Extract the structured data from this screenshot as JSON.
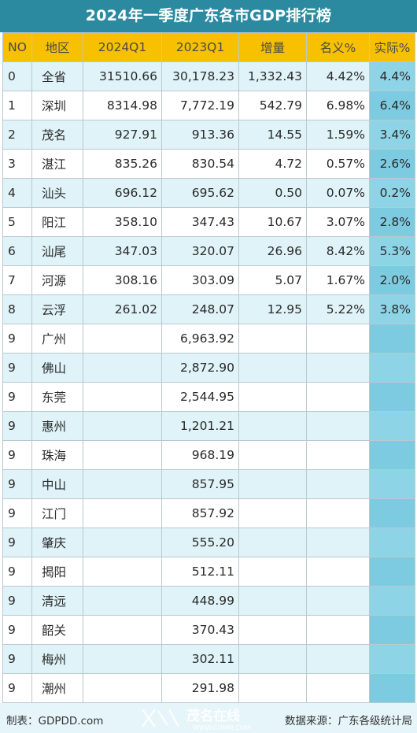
{
  "title": "2024年一季度广东各市GDP排行榜",
  "headers": [
    "NO",
    "地区",
    "2024Q1",
    "2023Q1",
    "增量",
    "名义%",
    "实际%"
  ],
  "rows": [
    [
      "0",
      "全省",
      "31510.66",
      "30,178.23",
      "1,332.43",
      "4.42%",
      "4.4%"
    ],
    [
      "1",
      "深圳",
      "8314.98",
      "7,772.19",
      "542.79",
      "6.98%",
      "6.4%"
    ],
    [
      "2",
      "茂名",
      "927.91",
      "913.36",
      "14.55",
      "1.59%",
      "3.4%"
    ],
    [
      "3",
      "湛江",
      "835.26",
      "830.54",
      "4.72",
      "0.57%",
      "2.6%"
    ],
    [
      "4",
      "汕头",
      "696.12",
      "695.62",
      "0.50",
      "0.07%",
      "0.2%"
    ],
    [
      "5",
      "阳江",
      "358.10",
      "347.43",
      "10.67",
      "3.07%",
      "2.8%"
    ],
    [
      "6",
      "汕尾",
      "347.03",
      "320.07",
      "26.96",
      "8.42%",
      "5.3%"
    ],
    [
      "7",
      "河源",
      "308.16",
      "303.09",
      "5.07",
      "1.67%",
      "2.0%"
    ],
    [
      "8",
      "云浮",
      "261.02",
      "248.07",
      "12.95",
      "5.22%",
      "3.8%"
    ],
    [
      "9",
      "广州",
      "",
      "6,963.92",
      "",
      "",
      ""
    ],
    [
      "9",
      "佛山",
      "",
      "2,872.90",
      "",
      "",
      ""
    ],
    [
      "9",
      "东莞",
      "",
      "2,544.95",
      "",
      "",
      ""
    ],
    [
      "9",
      "惠州",
      "",
      "1,201.21",
      "",
      "",
      ""
    ],
    [
      "9",
      "珠海",
      "",
      "968.19",
      "",
      "",
      ""
    ],
    [
      "9",
      "中山",
      "",
      "857.95",
      "",
      "",
      ""
    ],
    [
      "9",
      "江门",
      "",
      "857.92",
      "",
      "",
      ""
    ],
    [
      "9",
      "肇庆",
      "",
      "555.20",
      "",
      "",
      ""
    ],
    [
      "9",
      "揭阳",
      "",
      "512.11",
      "",
      "",
      ""
    ],
    [
      "9",
      "清远",
      "",
      "448.99",
      "",
      "",
      ""
    ],
    [
      "9",
      "韶关",
      "",
      "370.43",
      "",
      "",
      ""
    ],
    [
      "9",
      "梅州",
      "",
      "302.11",
      "",
      "",
      ""
    ],
    [
      "9",
      "潮州",
      "",
      "291.98",
      "",
      "",
      ""
    ]
  ],
  "footer": {
    "maker": "制表：GDPDD.com",
    "source": "数据来源：广东各级统计局",
    "watermark_text": "茂名在线",
    "watermark_url": "WWW.GDMM.COM"
  },
  "colors": {
    "title_bg": "#2b8aa0",
    "header_bg": "#f7c000",
    "row_light": "#dff3f8",
    "actual_col": "#7ccbe0"
  }
}
